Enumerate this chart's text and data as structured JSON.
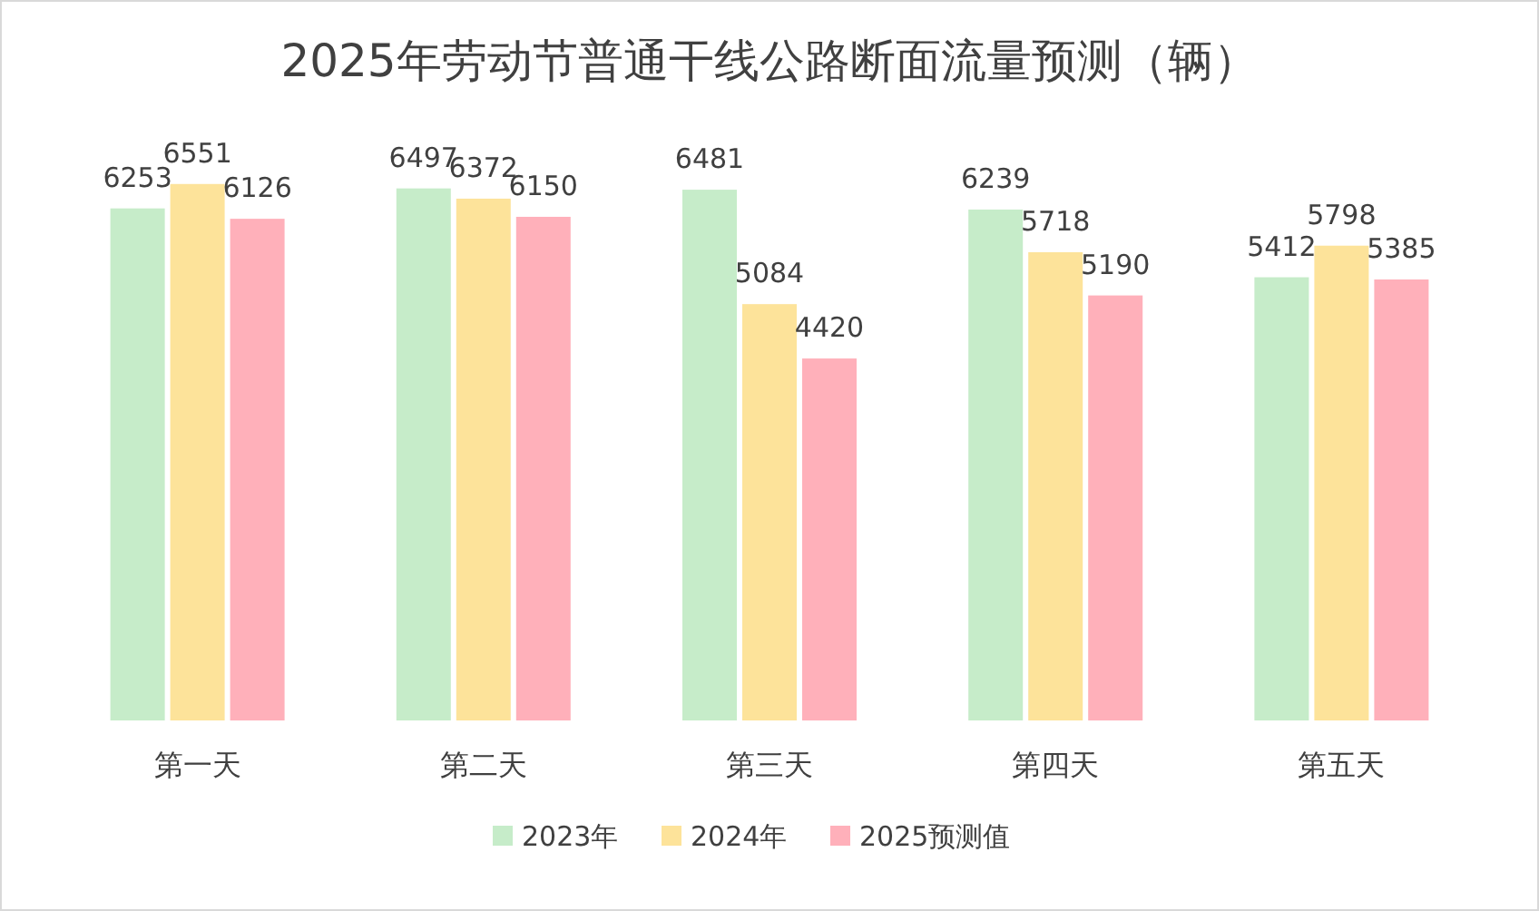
{
  "chart_data": {
    "type": "bar",
    "title": "2025年劳动节普通干线公路断面流量预测（辆）",
    "categories": [
      "第一天",
      "第二天",
      "第三天",
      "第四天",
      "第五天"
    ],
    "series": [
      {
        "name": "2023年",
        "color": "#c6ecc9",
        "values": [
          6253,
          6497,
          6481,
          6239,
          5412
        ]
      },
      {
        "name": "2024年",
        "color": "#fde39a",
        "values": [
          6551,
          6372,
          5084,
          5718,
          5798
        ]
      },
      {
        "name": "2025预测值",
        "color": "#ffb0ba",
        "values": [
          6126,
          6150,
          4420,
          5190,
          5385
        ]
      }
    ],
    "data_labels": true,
    "legend": "bottom"
  }
}
